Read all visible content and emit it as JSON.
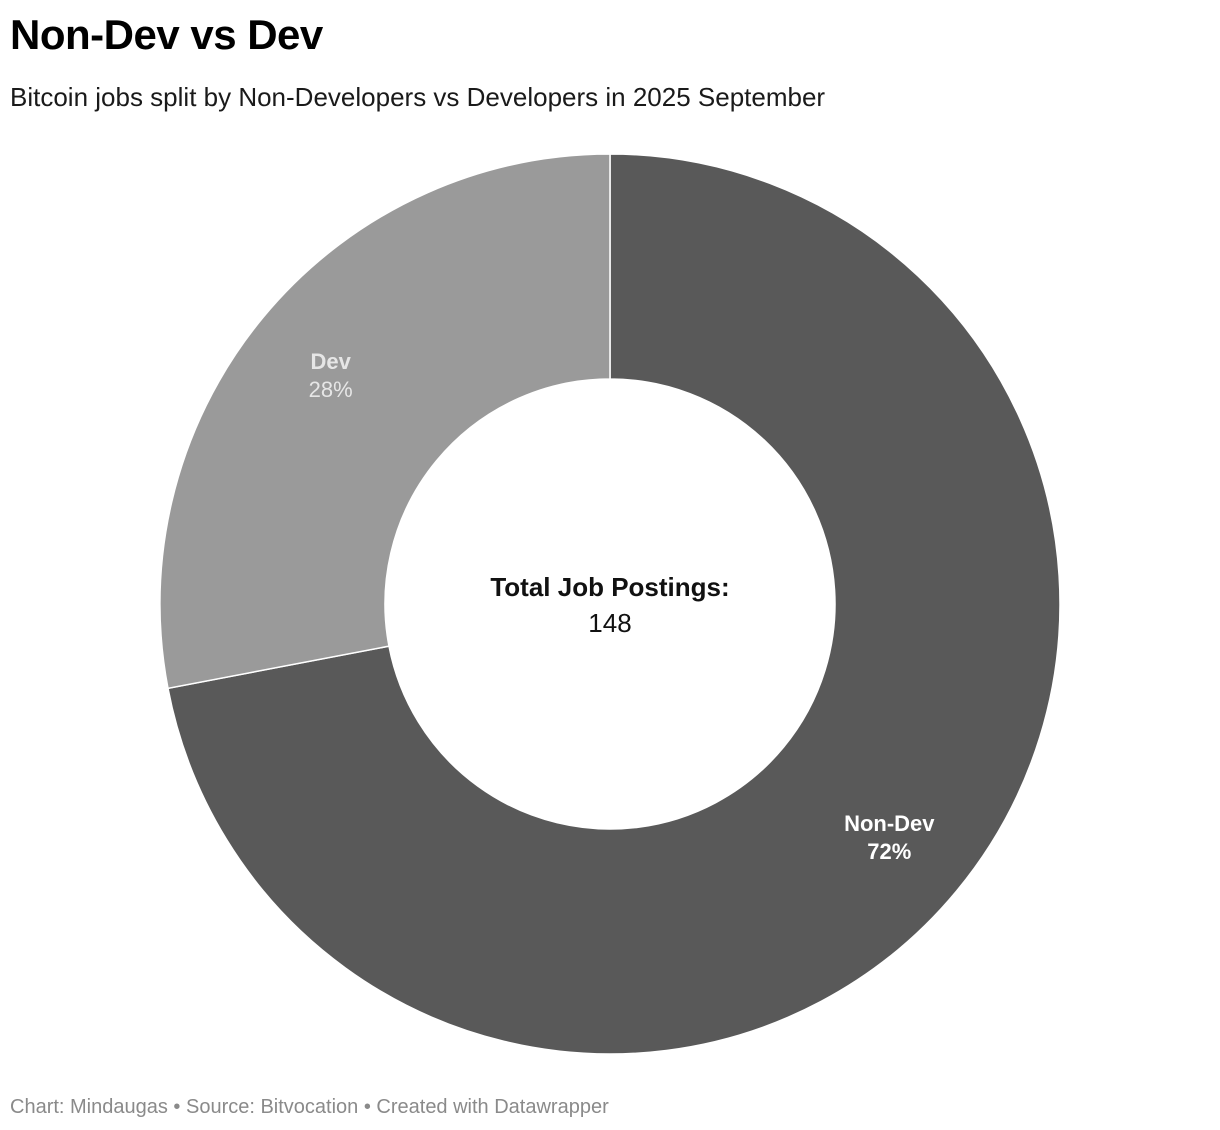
{
  "chart_data": {
    "type": "pie",
    "variant": "donut",
    "title": "Non-Dev vs Dev",
    "subtitle": "Bitcoin jobs split by Non-Developers vs Developers in 2025 September",
    "center_label": "Total Job Postings:",
    "total": 148,
    "slices": [
      {
        "label": "Non-Dev",
        "percent": 72,
        "percent_label": "72%",
        "color": "#595959",
        "label_color": "#ffffff"
      },
      {
        "label": "Dev",
        "percent": 28,
        "percent_label": "28%",
        "color": "#9a9a9a",
        "label_color": "#e6e6e6"
      }
    ]
  },
  "footer": {
    "text": "Chart: Mindaugas • Source: Bitvocation • Created with Datawrapper"
  }
}
